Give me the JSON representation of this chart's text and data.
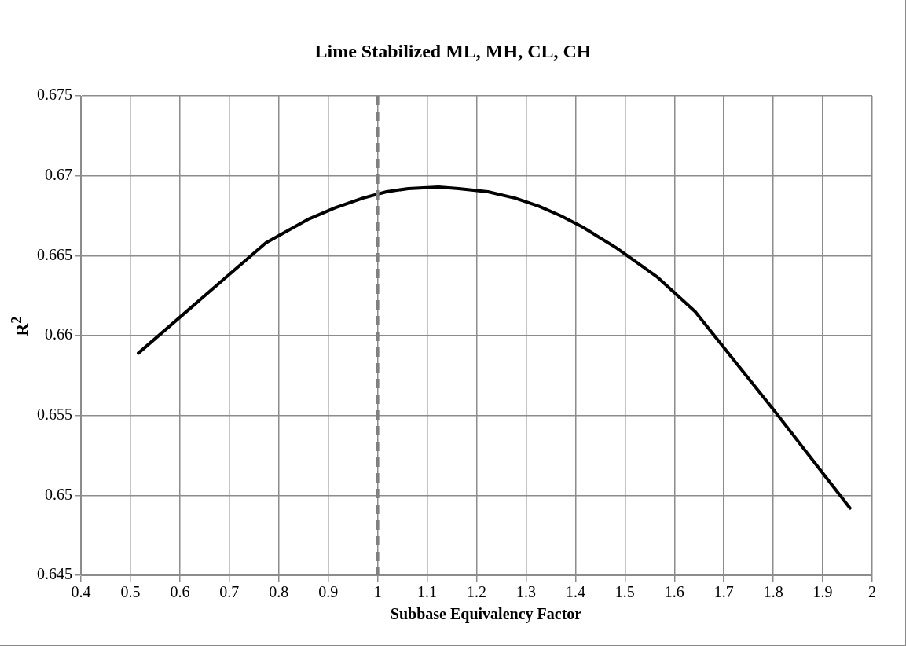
{
  "chart_data": {
    "type": "line",
    "title": "Lime Stabilized ML, MH, CL, CH",
    "xlabel": "Subbase Equivalency Factor",
    "ylabel": "R$^{2}$",
    "x": [
      0.516,
      0.774,
      0.861,
      0.914,
      0.97,
      1.018,
      1.062,
      1.123,
      1.164,
      1.223,
      1.278,
      1.326,
      1.37,
      1.414,
      1.482,
      1.564,
      1.642,
      1.802,
      1.955
    ],
    "series": [
      {
        "color": "#000000",
        "values": [
          0.6589,
          0.6658,
          0.6673,
          0.668,
          0.6686,
          0.669,
          0.6692,
          0.6693,
          0.6692,
          0.669,
          0.6686,
          0.6681,
          0.6675,
          0.6668,
          0.6655,
          0.6637,
          0.6615,
          0.6553,
          0.6492
        ]
      }
    ],
    "xlim": [
      0.4,
      2
    ],
    "xticks": [
      0.4,
      0.5,
      0.6,
      0.7,
      0.8,
      0.9,
      1,
      1.1,
      1.2,
      1.3,
      1.4,
      1.5,
      1.6,
      1.7,
      1.8,
      1.9,
      2
    ],
    "ylim": [
      0.645,
      0.675
    ],
    "yticks": [
      0.645,
      0.65,
      0.655,
      0.66,
      0.665,
      0.67,
      0.675
    ],
    "ref_lines": [
      {
        "axis": "x",
        "value": 1,
        "color": "#808080",
        "line_style": "dashed"
      }
    ],
    "grid": true,
    "legend": false,
    "marker": "none",
    "line_style": "solid"
  }
}
